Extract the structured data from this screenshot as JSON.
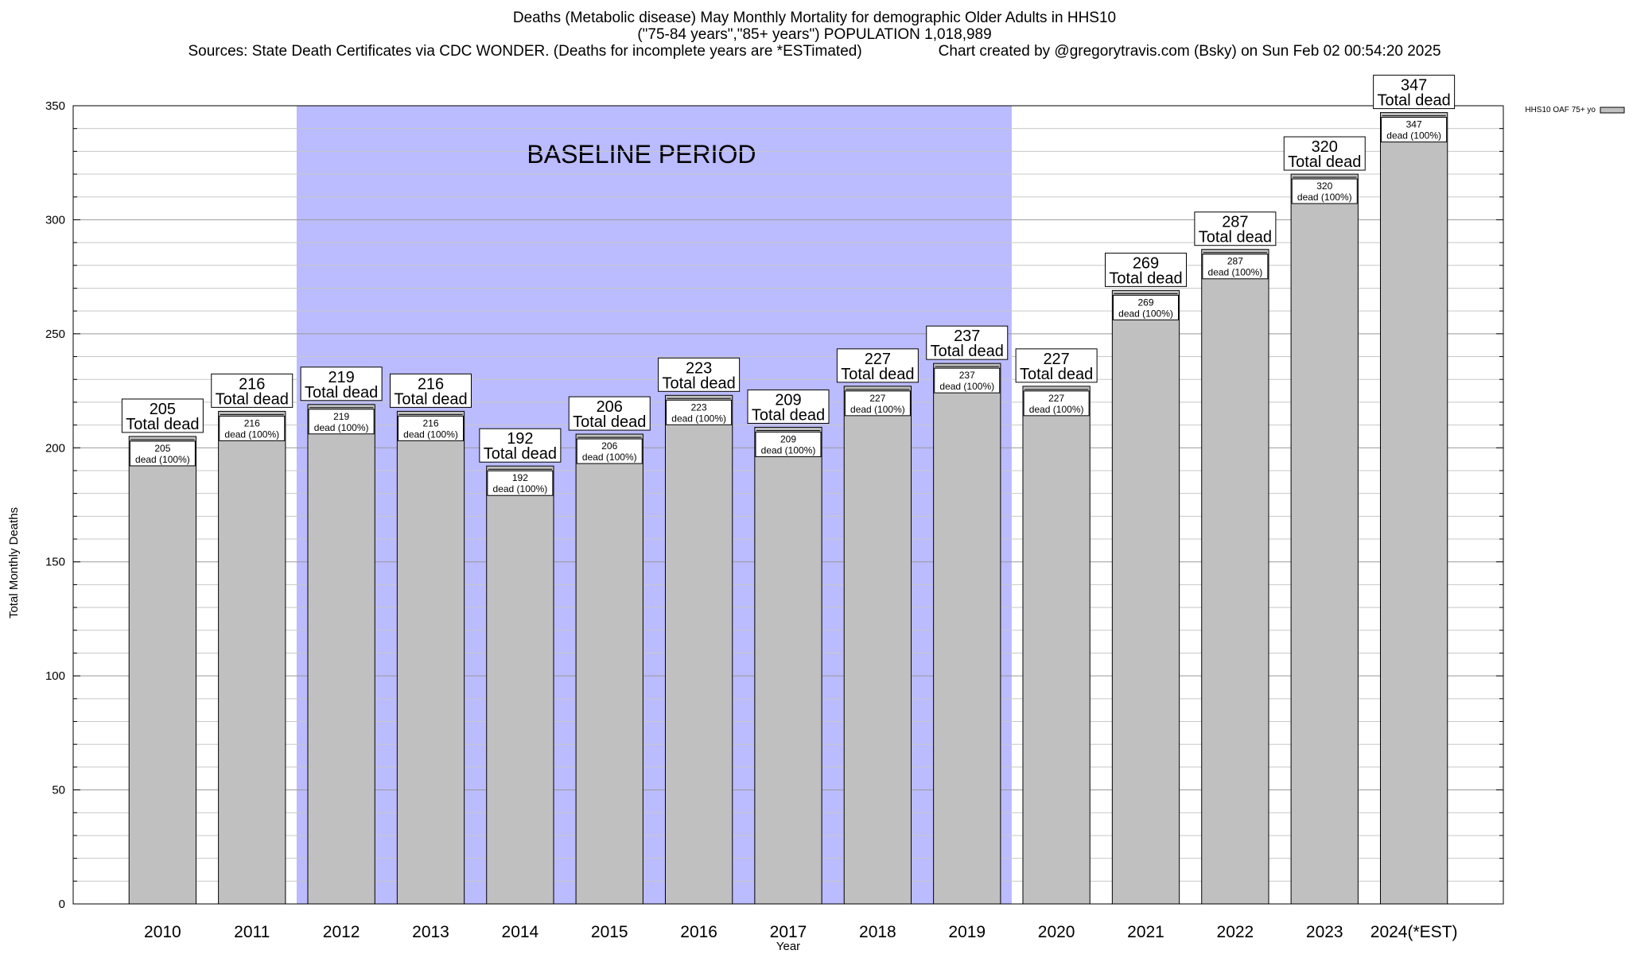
{
  "chart_data": {
    "type": "bar",
    "title_lines": [
      "Deaths (Metabolic disease) May Monthly Mortality for demographic Older Adults in HHS10",
      "(\"75-84 years\",\"85+ years\") POPULATION 1,018,989"
    ],
    "sources_text": "Sources: State Death Certificates via CDC WONDER. (Deaths for incomplete years are *ESTimated)",
    "credit_text": "Chart created by @gregorytravis.com (Bsky) on Sun Feb 02 00:54:20 2025",
    "xlabel": "Year",
    "ylabel": "Total Monthly Deaths",
    "ylim": [
      0,
      350
    ],
    "yticks": [
      0,
      50,
      100,
      150,
      200,
      250,
      300,
      350
    ],
    "categories": [
      "2010",
      "2011",
      "2012",
      "2013",
      "2014",
      "2015",
      "2016",
      "2017",
      "2018",
      "2019",
      "2020",
      "2021",
      "2022",
      "2023",
      "2024(*EST)"
    ],
    "series": [
      {
        "name": "HHS10 OAF 75+ yo",
        "values": [
          205,
          216,
          219,
          216,
          192,
          206,
          223,
          209,
          227,
          237,
          227,
          269,
          287,
          320,
          347
        ],
        "color": "#c0c0c0"
      }
    ],
    "outer_label_suffix": "Total dead",
    "inner_label_suffix": "dead (100%)",
    "baseline": {
      "label": "BASELINE PERIOD",
      "start": "2012",
      "end": "2019",
      "color": "#bbbbff"
    },
    "grid": true,
    "legend_position": "top-right"
  }
}
